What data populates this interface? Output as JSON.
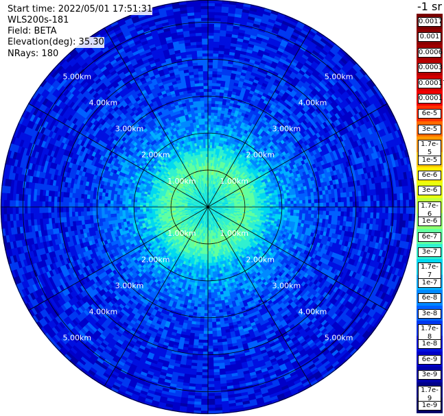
{
  "header": {
    "start_time": "Start time: 2022/05/01 17:51:31",
    "instrument": "WLS200s-181",
    "field": "Field: BETA",
    "elevation": "Elevation(deg): 35.30",
    "nrays": "NRays: 180"
  },
  "colorbar": {
    "unit_label": "-1 sr",
    "ticks": [
      "0.0017",
      "0.001",
      "0.0006",
      "0.0003",
      "0.00017",
      "0.0001",
      "6e-5",
      "3e-5",
      "1.7e-5",
      "1e-5",
      "6e-6",
      "3e-6",
      "1.7e-6",
      "1e-6",
      "6e-7",
      "3e-7",
      "1.7e-7",
      "1e-7",
      "6e-8",
      "3e-8",
      "1.7e-8",
      "1e-8",
      "6e-9",
      "3e-9",
      "1.7e-9",
      "1e-9"
    ],
    "colors": [
      "#7a0000",
      "#8c0000",
      "#a00000",
      "#b80000",
      "#d40000",
      "#f00000",
      "#ff3200",
      "#ff6a00",
      "#ff9a00",
      "#ffc800",
      "#fff000",
      "#e8ff10",
      "#c0ff40",
      "#90ff70",
      "#60ffa0",
      "#30f0d0",
      "#00d8f0",
      "#00b0ff",
      "#0088ff",
      "#0060ff",
      "#0038f0",
      "#0010e0",
      "#0000c8",
      "#0000a8",
      "#000088",
      "#000068"
    ]
  },
  "chart_data": {
    "type": "heatmap",
    "projection": "polar-ppi",
    "field": "BETA",
    "nrays": 180,
    "range_unit": "km",
    "max_range_km": 5.6,
    "range_rings_km": [
      1,
      2,
      3,
      4,
      5
    ],
    "ring_labels": [
      "1.00km",
      "2.00km",
      "3.00km",
      "4.00km",
      "5.00km"
    ],
    "azimuth_spokes_deg": [
      0,
      30,
      60,
      90,
      120,
      150,
      180,
      210,
      240,
      270,
      300,
      330
    ],
    "radial_profile_log10": [
      {
        "r_km": 0.0,
        "v": -6.6
      },
      {
        "r_km": 0.5,
        "v": -6.5
      },
      {
        "r_km": 1.0,
        "v": -6.2
      },
      {
        "r_km": 1.3,
        "v": -6.4
      },
      {
        "r_km": 1.7,
        "v": -6.9
      },
      {
        "r_km": 2.2,
        "v": -7.2
      },
      {
        "r_km": 3.0,
        "v": -7.6
      },
      {
        "r_km": 4.0,
        "v": -7.8
      },
      {
        "r_km": 5.0,
        "v": -7.9
      },
      {
        "r_km": 5.6,
        "v": -8.0
      }
    ],
    "color_scale_log10_range": [
      -9,
      -2.77
    ]
  }
}
